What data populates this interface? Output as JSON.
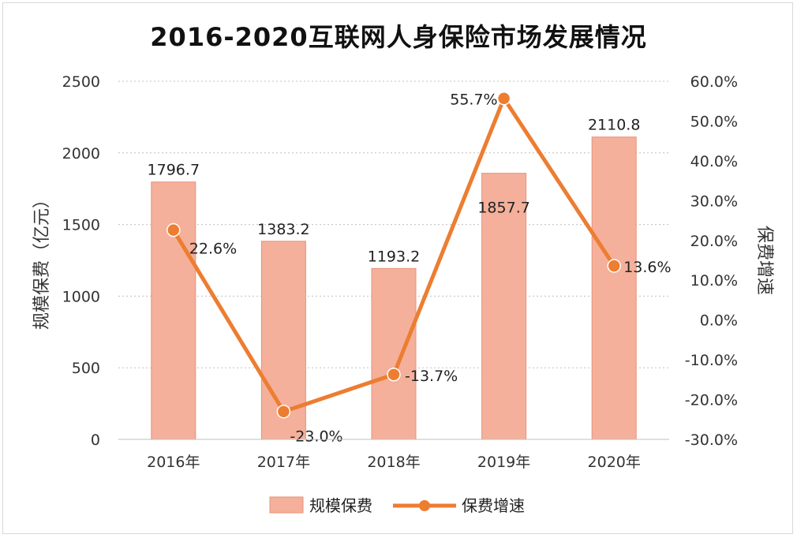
{
  "chart_data": {
    "type": "bar",
    "title": "2016-2020互联网人身保险市场发展情况",
    "categories": [
      "2016年",
      "2017年",
      "2018年",
      "2019年",
      "2020年"
    ],
    "series": [
      {
        "name": "规模保费",
        "type": "bar",
        "axis": "left",
        "values": [
          1796.7,
          1383.2,
          1193.2,
          1857.7,
          2110.8
        ],
        "labels": [
          "1796.7",
          "1383.2",
          "1193.2",
          "1857.7",
          "2110.8"
        ]
      },
      {
        "name": "保费增速",
        "type": "line",
        "axis": "right",
        "values": [
          22.6,
          -23.0,
          -13.7,
          55.7,
          13.6
        ],
        "labels": [
          "22.6%",
          "-23.0%",
          "-13.7%",
          "55.7%",
          "13.6%"
        ]
      }
    ],
    "ylabel": "规模保费（亿元）",
    "y2label": "保费增速",
    "ylim": [
      0,
      2500
    ],
    "y2lim": [
      -30,
      60
    ],
    "yticks": [
      "0",
      "500",
      "1000",
      "1500",
      "2000",
      "2500"
    ],
    "y2ticks": [
      "-30.0%",
      "-20.0%",
      "-10.0%",
      "0.0%",
      "10.0%",
      "20.0%",
      "30.0%",
      "40.0%",
      "50.0%",
      "60.0%"
    ],
    "grid": true,
    "legend_position": "bottom",
    "colors": {
      "bar": "#f4b09a",
      "bar_stroke": "#e9927a",
      "line": "#ed7d31"
    }
  }
}
